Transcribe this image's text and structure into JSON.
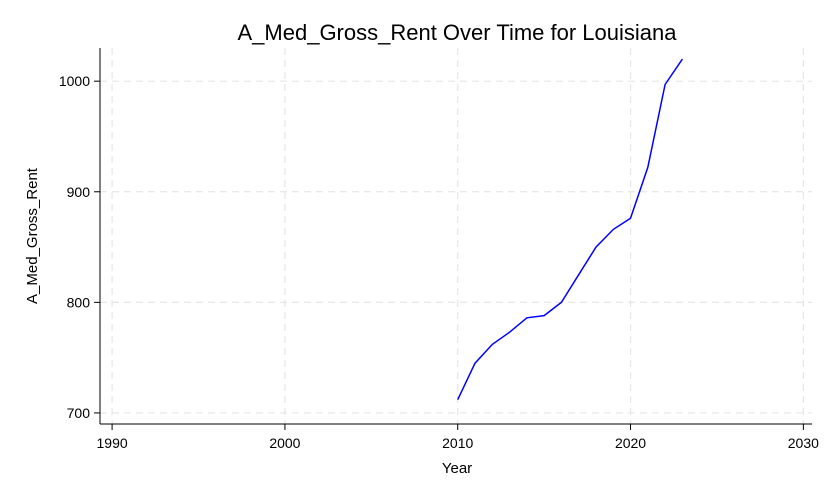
{
  "chart_data": {
    "type": "line",
    "title": "A_Med_Gross_Rent Over Time for Louisiana",
    "xlabel": "Year",
    "ylabel": "A_Med_Gross_Rent",
    "xlim": [
      1989.3,
      2030.5
    ],
    "ylim": [
      690,
      1030
    ],
    "xticks": [
      1990,
      2000,
      2010,
      2020,
      2030
    ],
    "yticks": [
      700,
      800,
      900,
      1000
    ],
    "grid": true,
    "series": [
      {
        "color": "#0000ff",
        "x": [
          2010,
          2011,
          2012,
          2013,
          2014,
          2015,
          2016,
          2017,
          2018,
          2019,
          2020,
          2021,
          2022,
          2023
        ],
        "y": [
          712,
          745,
          762,
          773,
          786,
          788,
          800,
          825,
          850,
          866,
          876,
          922,
          997,
          1020
        ]
      }
    ]
  }
}
